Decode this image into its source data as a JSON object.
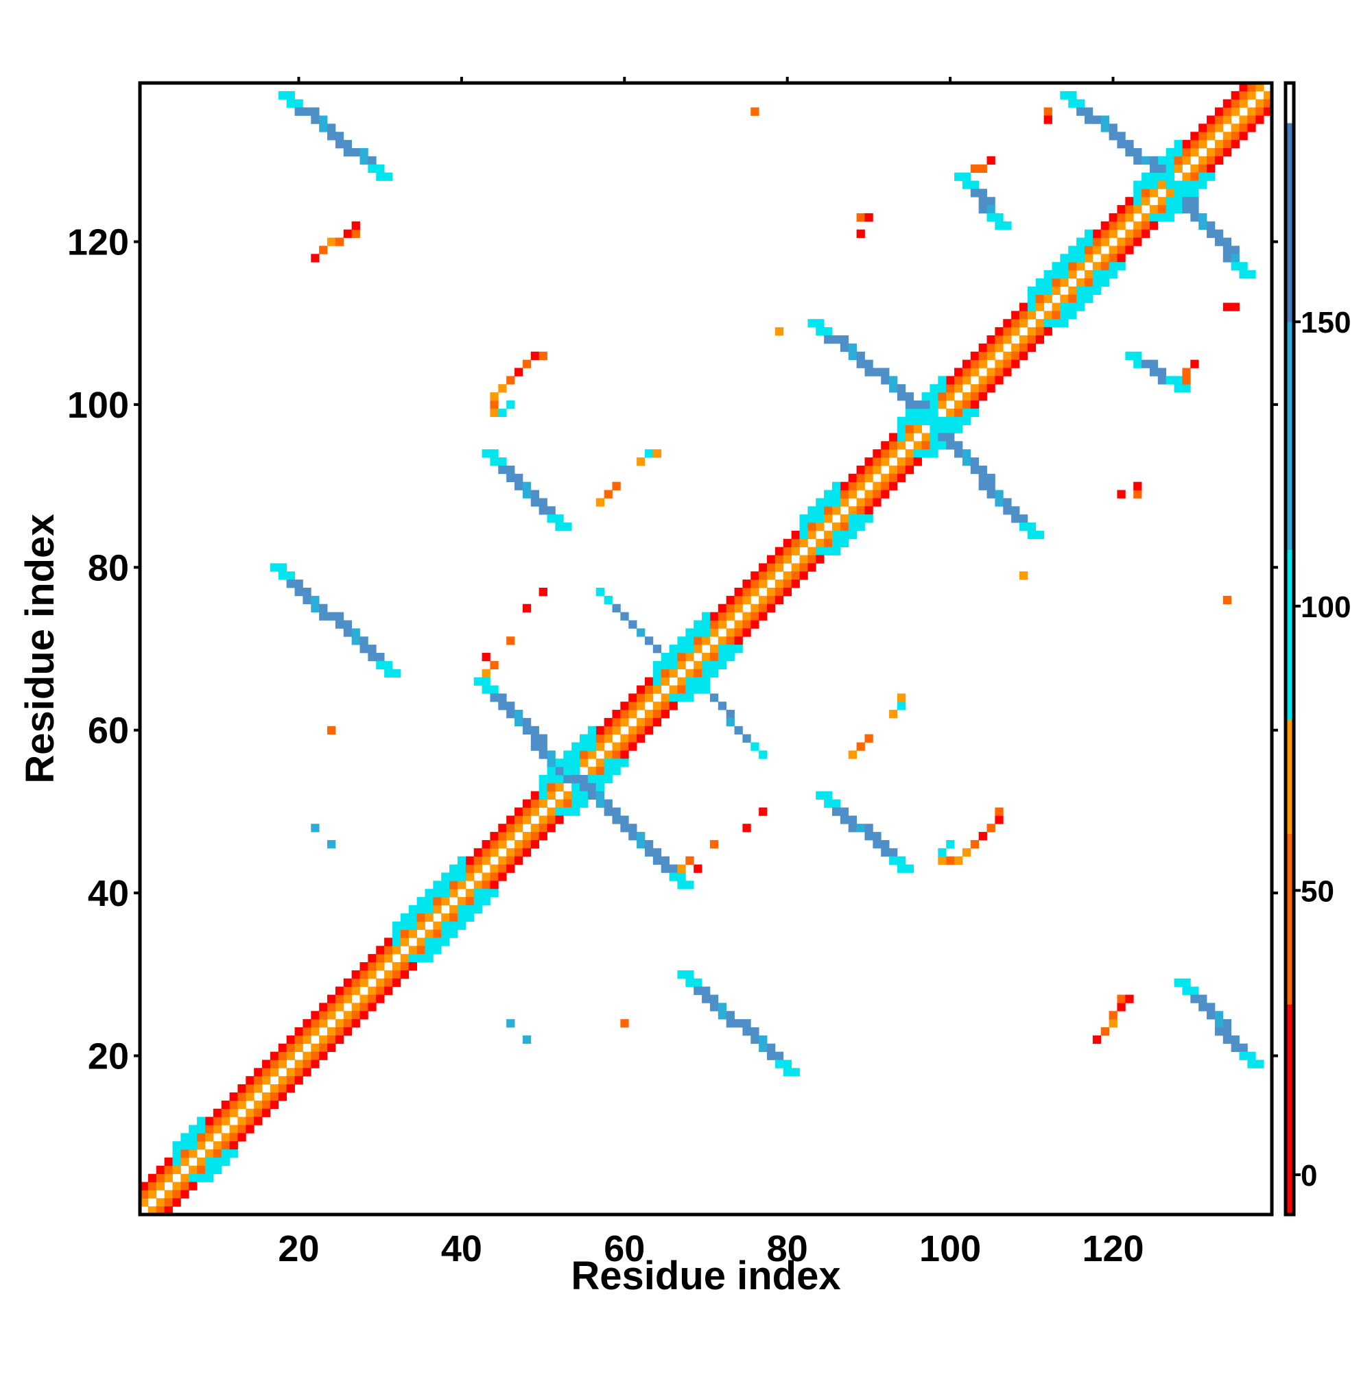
{
  "chart_data": {
    "type": "heatmap",
    "title": "",
    "xlabel": "Residue index",
    "ylabel": "Residue index",
    "xlim": [
      0.5,
      139.5
    ],
    "ylim": [
      0.5,
      139.5
    ],
    "xticks": [
      20,
      40,
      60,
      80,
      100,
      120
    ],
    "yticks": [
      20,
      40,
      60,
      80,
      100,
      120
    ],
    "colorbar": {
      "range": [
        -7,
        192
      ],
      "ticks": [
        0,
        50,
        100,
        150
      ],
      "segments": [
        {
          "from": -7,
          "to": 0,
          "color": "#ff0000"
        },
        {
          "from": 0,
          "to": 30,
          "color": "#ff0000"
        },
        {
          "from": 30,
          "to": 60,
          "color": "#ff6600"
        },
        {
          "from": 60,
          "to": 80,
          "color": "#ff9900"
        },
        {
          "from": 80,
          "to": 110,
          "color": "#00e5ee"
        },
        {
          "from": 110,
          "to": 150,
          "color": "#33aadd"
        },
        {
          "from": 150,
          "to": 185,
          "color": "#4a7ebb"
        },
        {
          "from": 185,
          "to": 192,
          "color": "#ffffff"
        }
      ]
    },
    "color_classes": {
      "r": "#ff0000",
      "o": "#ff6600",
      "y": "#ff9900",
      "c": "#00e5ee",
      "b": "#4f8fc8",
      "m": "#2aaed8"
    },
    "diagonal_pattern": [
      {
        "offset": 1,
        "class": "y"
      },
      {
        "offset": 2,
        "class": "o"
      },
      {
        "offset": 3,
        "class": "r"
      },
      {
        "offset": -1,
        "class": "y"
      },
      {
        "offset": -2,
        "class": "o"
      },
      {
        "offset": -3,
        "class": "r"
      }
    ],
    "diagonal_helix_patches": [
      {
        "from": 5,
        "to": 8
      },
      {
        "from": 32,
        "to": 40
      },
      {
        "from": 50,
        "to": 56
      },
      {
        "from": 64,
        "to": 70
      },
      {
        "from": 82,
        "to": 86
      },
      {
        "from": 94,
        "to": 99
      },
      {
        "from": 110,
        "to": 117
      },
      {
        "from": 123,
        "to": 128
      }
    ],
    "strand_pairs": [
      {
        "x": [
          18,
          30
        ],
        "y": [
          138,
          128
        ],
        "width": 2
      },
      {
        "x": [
          128,
          137
        ],
        "y": [
          29,
          19
        ],
        "width": 2
      },
      {
        "x": [
          17,
          31
        ],
        "y": [
          80,
          67
        ],
        "width": 2
      },
      {
        "x": [
          67,
          80
        ],
        "y": [
          30,
          18
        ],
        "width": 2
      },
      {
        "x": [
          43,
          52
        ],
        "y": [
          94,
          85
        ],
        "width": 2
      },
      {
        "x": [
          84,
          94
        ],
        "y": [
          52,
          43
        ],
        "width": 2
      },
      {
        "x": [
          42,
          55
        ],
        "y": [
          66,
          52
        ],
        "width": 2
      },
      {
        "x": [
          52,
          67
        ],
        "y": [
          56,
          41
        ],
        "width": 2
      },
      {
        "x": [
          83,
          98
        ],
        "y": [
          110,
          98
        ],
        "width": 2
      },
      {
        "x": [
          97,
          110
        ],
        "y": [
          98,
          84
        ],
        "width": 2
      },
      {
        "x": [
          114,
          127
        ],
        "y": [
          138,
          127
        ],
        "width": 2
      },
      {
        "x": [
          127,
          136
        ],
        "y": [
          127,
          116
        ],
        "width": 2
      },
      {
        "x": [
          101,
          106
        ],
        "y": [
          128,
          122
        ],
        "width": 2
      },
      {
        "x": [
          122,
          128
        ],
        "y": [
          106,
          102
        ],
        "width": 2
      },
      {
        "x": [
          57,
          66
        ],
        "y": [
          77,
          68
        ],
        "width": 1
      },
      {
        "x": [
          69,
          77
        ],
        "y": [
          66,
          57
        ],
        "width": 1
      }
    ],
    "sparse_points": [
      {
        "x": 76,
        "y": 136,
        "class": "o"
      },
      {
        "x": 112,
        "y": 136,
        "class": "o"
      },
      {
        "x": 112,
        "y": 135,
        "class": "r"
      },
      {
        "x": 89,
        "y": 123,
        "class": "o"
      },
      {
        "x": 90,
        "y": 123,
        "class": "r"
      },
      {
        "x": 89,
        "y": 121,
        "class": "o"
      },
      {
        "x": 79,
        "y": 109,
        "class": "y"
      },
      {
        "x": 134,
        "y": 112,
        "class": "r"
      },
      {
        "x": 135,
        "y": 112,
        "class": "r"
      },
      {
        "x": 109,
        "y": 79,
        "class": "y"
      },
      {
        "x": 134,
        "y": 76,
        "class": "o"
      },
      {
        "x": 24,
        "y": 60,
        "class": "o"
      },
      {
        "x": 22,
        "y": 48,
        "class": "m"
      },
      {
        "x": 24,
        "y": 46,
        "class": "m"
      },
      {
        "x": 46,
        "y": 24,
        "class": "m"
      },
      {
        "x": 48,
        "y": 22,
        "class": "m"
      },
      {
        "x": 60,
        "y": 24,
        "class": "o"
      },
      {
        "x": 22,
        "y": 118,
        "class": "r"
      },
      {
        "x": 23,
        "y": 119,
        "class": "o"
      },
      {
        "x": 24,
        "y": 120,
        "class": "y"
      },
      {
        "x": 25,
        "y": 120,
        "class": "o"
      },
      {
        "x": 26,
        "y": 121,
        "class": "r"
      },
      {
        "x": 27,
        "y": 121,
        "class": "o"
      },
      {
        "x": 27,
        "y": 122,
        "class": "r"
      },
      {
        "x": 118,
        "y": 22,
        "class": "r"
      },
      {
        "x": 119,
        "y": 23,
        "class": "o"
      },
      {
        "x": 120,
        "y": 24,
        "class": "y"
      },
      {
        "x": 120,
        "y": 25,
        "class": "o"
      },
      {
        "x": 121,
        "y": 26,
        "class": "r"
      },
      {
        "x": 121,
        "y": 27,
        "class": "o"
      },
      {
        "x": 122,
        "y": 27,
        "class": "r"
      },
      {
        "x": 44,
        "y": 99,
        "class": "y"
      },
      {
        "x": 44,
        "y": 100,
        "class": "o"
      },
      {
        "x": 44,
        "y": 101,
        "class": "y"
      },
      {
        "x": 45,
        "y": 102,
        "class": "y"
      },
      {
        "x": 46,
        "y": 103,
        "class": "o"
      },
      {
        "x": 47,
        "y": 104,
        "class": "r"
      },
      {
        "x": 48,
        "y": 105,
        "class": "o"
      },
      {
        "x": 49,
        "y": 106,
        "class": "r"
      },
      {
        "x": 50,
        "y": 106,
        "class": "o"
      },
      {
        "x": 45,
        "y": 99,
        "class": "c"
      },
      {
        "x": 46,
        "y": 100,
        "class": "c"
      },
      {
        "x": 99,
        "y": 44,
        "class": "y"
      },
      {
        "x": 100,
        "y": 44,
        "class": "o"
      },
      {
        "x": 101,
        "y": 44,
        "class": "y"
      },
      {
        "x": 102,
        "y": 45,
        "class": "y"
      },
      {
        "x": 103,
        "y": 46,
        "class": "o"
      },
      {
        "x": 104,
        "y": 47,
        "class": "r"
      },
      {
        "x": 105,
        "y": 48,
        "class": "o"
      },
      {
        "x": 106,
        "y": 49,
        "class": "r"
      },
      {
        "x": 106,
        "y": 50,
        "class": "o"
      },
      {
        "x": 99,
        "y": 45,
        "class": "c"
      },
      {
        "x": 100,
        "y": 46,
        "class": "c"
      },
      {
        "x": 57,
        "y": 88,
        "class": "y"
      },
      {
        "x": 58,
        "y": 89,
        "class": "o"
      },
      {
        "x": 59,
        "y": 90,
        "class": "o"
      },
      {
        "x": 88,
        "y": 57,
        "class": "y"
      },
      {
        "x": 89,
        "y": 58,
        "class": "o"
      },
      {
        "x": 90,
        "y": 59,
        "class": "o"
      },
      {
        "x": 62,
        "y": 93,
        "class": "y"
      },
      {
        "x": 63,
        "y": 94,
        "class": "c"
      },
      {
        "x": 64,
        "y": 94,
        "class": "y"
      },
      {
        "x": 93,
        "y": 62,
        "class": "y"
      },
      {
        "x": 94,
        "y": 63,
        "class": "c"
      },
      {
        "x": 94,
        "y": 64,
        "class": "y"
      },
      {
        "x": 43,
        "y": 69,
        "class": "r"
      },
      {
        "x": 44,
        "y": 68,
        "class": "o"
      },
      {
        "x": 43,
        "y": 67,
        "class": "y"
      },
      {
        "x": 69,
        "y": 43,
        "class": "r"
      },
      {
        "x": 68,
        "y": 44,
        "class": "o"
      },
      {
        "x": 67,
        "y": 43,
        "class": "y"
      },
      {
        "x": 46,
        "y": 71,
        "class": "o"
      },
      {
        "x": 71,
        "y": 46,
        "class": "o"
      },
      {
        "x": 48,
        "y": 75,
        "class": "r"
      },
      {
        "x": 75,
        "y": 48,
        "class": "r"
      },
      {
        "x": 50,
        "y": 77,
        "class": "r"
      },
      {
        "x": 77,
        "y": 50,
        "class": "r"
      },
      {
        "x": 103,
        "y": 129,
        "class": "o"
      },
      {
        "x": 104,
        "y": 129,
        "class": "o"
      },
      {
        "x": 105,
        "y": 130,
        "class": "r"
      },
      {
        "x": 129,
        "y": 103,
        "class": "o"
      },
      {
        "x": 129,
        "y": 104,
        "class": "o"
      },
      {
        "x": 130,
        "y": 105,
        "class": "r"
      },
      {
        "x": 121,
        "y": 89,
        "class": "r"
      },
      {
        "x": 123,
        "y": 89,
        "class": "o"
      },
      {
        "x": 123,
        "y": 90,
        "class": "r"
      },
      {
        "x": 89,
        "y": 121,
        "class": "r"
      }
    ]
  }
}
